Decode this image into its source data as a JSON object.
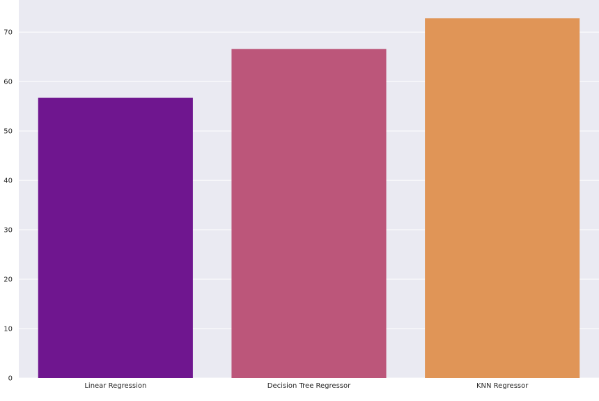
{
  "chart_data": {
    "type": "bar",
    "categories": [
      "Linear Regression",
      "Decision Tree Regressor",
      "KNN Regressor"
    ],
    "values": [
      56.7,
      66.6,
      72.8
    ],
    "colors": [
      "#6f168f",
      "#bc567a",
      "#e09557"
    ],
    "ylim": [
      0,
      76.5
    ],
    "yticks": [
      0,
      10,
      20,
      30,
      40,
      50,
      60,
      70
    ],
    "grid": true,
    "background": "#eaeaf2",
    "title": "",
    "xlabel": "",
    "ylabel": ""
  }
}
